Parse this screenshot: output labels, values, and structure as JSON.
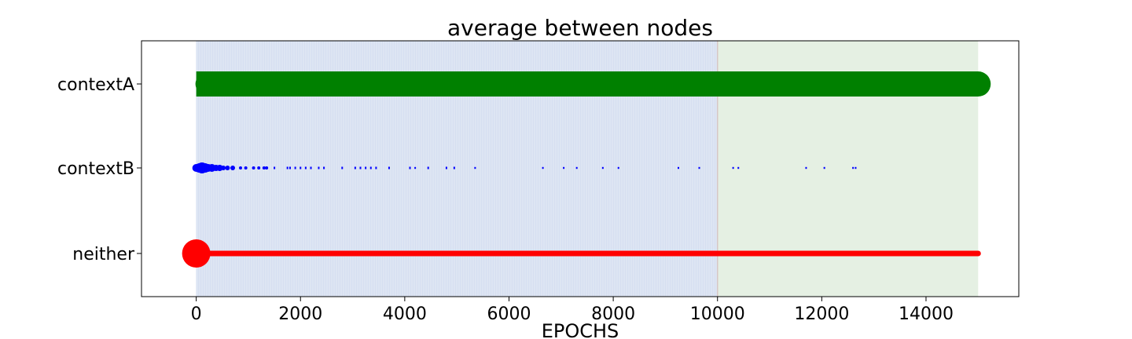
{
  "chart_data": {
    "type": "scatter",
    "title": "average between nodes",
    "xlabel": "EPOCHS",
    "ylabel": "",
    "xlim": [
      -1050,
      15780
    ],
    "x_ticks": [
      0,
      2000,
      4000,
      6000,
      8000,
      10000,
      12000,
      14000
    ],
    "categories": [
      "contextA",
      "contextB",
      "neither"
    ],
    "shaded_regions": [
      {
        "x_start": 0,
        "x_end": 10000,
        "color": "#dde5f3"
      },
      {
        "x_start": 10000,
        "x_end": 15000,
        "color": "#e5f0e3"
      }
    ],
    "region_boundary": 10000,
    "grid": false,
    "series": [
      {
        "category": "contextA",
        "color": "#008000",
        "x_range": [
          0,
          15000
        ],
        "marker_size_start": 16,
        "marker_size_end": 16,
        "dense": true
      },
      {
        "category": "contextB",
        "color": "#0000ff",
        "points": [
          {
            "x": 0,
            "size": 5
          },
          {
            "x": 60,
            "size": 6
          },
          {
            "x": 110,
            "size": 7
          },
          {
            "x": 170,
            "size": 6
          },
          {
            "x": 230,
            "size": 5
          },
          {
            "x": 300,
            "size": 5
          },
          {
            "x": 380,
            "size": 4
          },
          {
            "x": 450,
            "size": 4
          },
          {
            "x": 520,
            "size": 3
          },
          {
            "x": 600,
            "size": 3
          },
          {
            "x": 700,
            "size": 3
          },
          {
            "x": 850,
            "size": 2
          },
          {
            "x": 950,
            "size": 2
          },
          {
            "x": 1100,
            "size": 2
          },
          {
            "x": 1200,
            "size": 2
          },
          {
            "x": 1300,
            "size": 2
          },
          {
            "x": 1350,
            "size": 2
          },
          {
            "x": 1500,
            "size": 1.5
          },
          {
            "x": 1750,
            "size": 1.5
          },
          {
            "x": 1800,
            "size": 1.5
          },
          {
            "x": 1900,
            "size": 1.5
          },
          {
            "x": 2000,
            "size": 1.5
          },
          {
            "x": 2100,
            "size": 1.5
          },
          {
            "x": 2200,
            "size": 1.5
          },
          {
            "x": 2350,
            "size": 1.5
          },
          {
            "x": 2450,
            "size": 1.5
          },
          {
            "x": 2800,
            "size": 1.5
          },
          {
            "x": 3050,
            "size": 1.5
          },
          {
            "x": 3150,
            "size": 1.5
          },
          {
            "x": 3250,
            "size": 1.5
          },
          {
            "x": 3350,
            "size": 1.5
          },
          {
            "x": 3450,
            "size": 1.5
          },
          {
            "x": 3700,
            "size": 1.5
          },
          {
            "x": 4100,
            "size": 1.5
          },
          {
            "x": 4200,
            "size": 1.2
          },
          {
            "x": 4450,
            "size": 1.5
          },
          {
            "x": 4800,
            "size": 1.5
          },
          {
            "x": 4950,
            "size": 1.5
          },
          {
            "x": 5350,
            "size": 1.2
          },
          {
            "x": 6650,
            "size": 1.2
          },
          {
            "x": 7050,
            "size": 1.2
          },
          {
            "x": 7300,
            "size": 1.2
          },
          {
            "x": 7800,
            "size": 1.2
          },
          {
            "x": 8100,
            "size": 1.2
          },
          {
            "x": 9250,
            "size": 1.2
          },
          {
            "x": 9650,
            "size": 1.2
          },
          {
            "x": 10300,
            "size": 1.2
          },
          {
            "x": 10400,
            "size": 1.2
          },
          {
            "x": 11700,
            "size": 1.2
          },
          {
            "x": 12050,
            "size": 1.2
          },
          {
            "x": 12600,
            "size": 1.2
          },
          {
            "x": 12650,
            "size": 1.2
          }
        ]
      },
      {
        "category": "neither",
        "color": "#ff0000",
        "x_range": [
          0,
          15000
        ],
        "first_point_size": 18,
        "marker_size": 3.5
      }
    ]
  }
}
